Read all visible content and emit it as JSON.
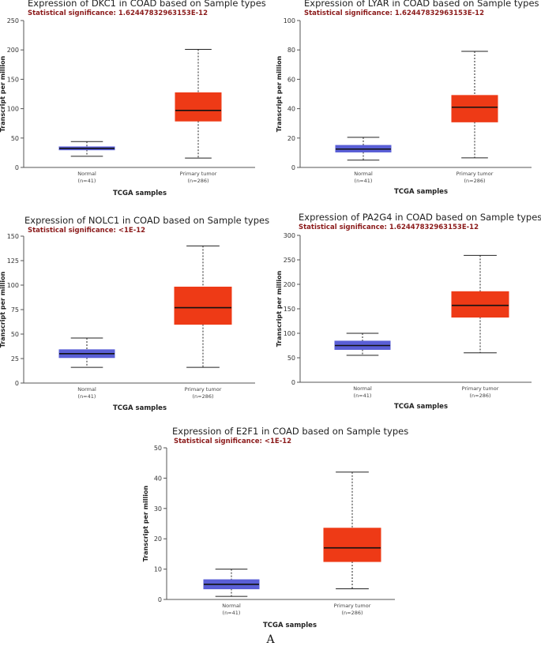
{
  "colors": {
    "normal": "#5a5fd6",
    "tumor": "#ee3a16",
    "significance": "#8b1a1a"
  },
  "chart_data": [
    {
      "type": "box",
      "title": "Expression of DKC1 in COAD based on Sample types",
      "significance": "Statistical significance: 1.62447832963153E-12",
      "ylabel": "Transcript per million",
      "xlabel": "TCGA samples",
      "ylim": [
        0,
        250
      ],
      "yticks": [
        0,
        50,
        100,
        150,
        200,
        250
      ],
      "categories": [
        {
          "name": "Normal",
          "n": "(n=41)",
          "min": 19,
          "q1": 30,
          "median": 32.5,
          "q3": 35,
          "max": 44
        },
        {
          "name": "Primary tumor",
          "n": "(n=286)",
          "min": 16,
          "q1": 79,
          "median": 97,
          "q3": 127,
          "max": 201
        }
      ]
    },
    {
      "type": "box",
      "title": "Expression of LYAR in COAD based on Sample types",
      "significance": "Statistical significance: 1.62447832963153E-12",
      "ylabel": "Transcript per million",
      "xlabel": "TCGA samples",
      "ylim": [
        0,
        100
      ],
      "yticks": [
        0,
        20,
        40,
        60,
        80,
        100
      ],
      "categories": [
        {
          "name": "Normal",
          "n": "(n=41)",
          "min": 5,
          "q1": 10.5,
          "median": 12.5,
          "q3": 15,
          "max": 20.5
        },
        {
          "name": "Primary tumor",
          "n": "(n=286)",
          "min": 6.5,
          "q1": 31,
          "median": 41,
          "q3": 49,
          "max": 79
        }
      ]
    },
    {
      "type": "box",
      "title": "Expression of NOLC1 in COAD based on Sample types",
      "significance": "Statistical significance: <1E-12",
      "ylabel": "Transcript per million",
      "xlabel": "TCGA samples",
      "ylim": [
        0,
        150
      ],
      "yticks": [
        0,
        25,
        50,
        75,
        100,
        125,
        150
      ],
      "categories": [
        {
          "name": "Normal",
          "n": "(n=41)",
          "min": 16,
          "q1": 26,
          "median": 30,
          "q3": 34,
          "max": 46
        },
        {
          "name": "Primary tumor",
          "n": "(n=286)",
          "min": 16,
          "q1": 60,
          "median": 77,
          "q3": 98,
          "max": 140
        }
      ]
    },
    {
      "type": "box",
      "title": "Expression of PA2G4 in COAD based on Sample types",
      "significance": "Statistical significance: 1.62447832963153E-12",
      "ylabel": "Transcript per million",
      "xlabel": "TCGA samples",
      "ylim": [
        0,
        300
      ],
      "yticks": [
        0,
        50,
        100,
        150,
        200,
        250,
        300
      ],
      "categories": [
        {
          "name": "Normal",
          "n": "(n=41)",
          "min": 55,
          "q1": 67,
          "median": 75,
          "q3": 84,
          "max": 100
        },
        {
          "name": "Primary tumor",
          "n": "(n=286)",
          "min": 60,
          "q1": 133,
          "median": 157,
          "q3": 185,
          "max": 259
        }
      ]
    },
    {
      "type": "box",
      "title": "Expression of E2F1 in COAD based on Sample types",
      "significance": "Statistical significance: <1E-12",
      "ylabel": "Transcript per million",
      "xlabel": "TCGA samples",
      "ylim": [
        0,
        50
      ],
      "yticks": [
        0,
        10,
        20,
        30,
        40,
        50
      ],
      "categories": [
        {
          "name": "Normal",
          "n": "(n=41)",
          "min": 1,
          "q1": 3.5,
          "median": 5,
          "q3": 6.5,
          "max": 10
        },
        {
          "name": "Primary tumor",
          "n": "(n=286)",
          "min": 3.5,
          "q1": 12.5,
          "median": 17,
          "q3": 23.5,
          "max": 42
        }
      ]
    }
  ],
  "figure_label": "A"
}
